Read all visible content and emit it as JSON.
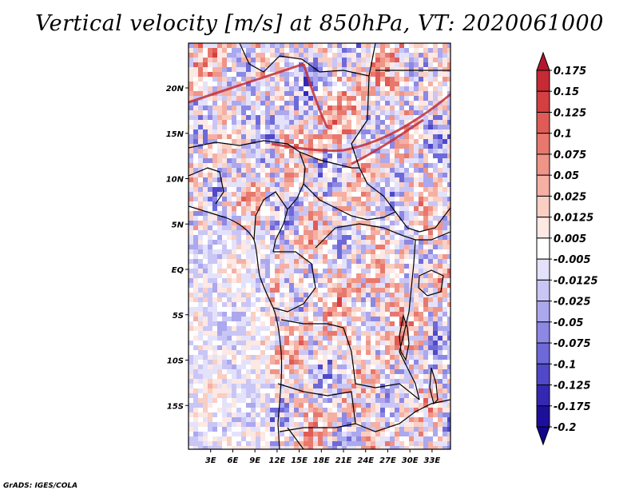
{
  "title": "Vertical velocity [m/s] at 850hPa, VT: 2020061000",
  "footer": "GrADS: IGES/COLA",
  "map": {
    "lat_labels": [
      {
        "label": "20N",
        "lat": 20
      },
      {
        "label": "15N",
        "lat": 15
      },
      {
        "label": "10N",
        "lat": 10
      },
      {
        "label": "5N",
        "lat": 5
      },
      {
        "label": "EQ",
        "lat": 0
      },
      {
        "label": "5S",
        "lat": -5
      },
      {
        "label": "10S",
        "lat": -10
      },
      {
        "label": "15S",
        "lat": -15
      }
    ],
    "lon_labels": [
      {
        "label": "3E",
        "lon": 3
      },
      {
        "label": "6E",
        "lon": 6
      },
      {
        "label": "9E",
        "lon": 9
      },
      {
        "label": "12E",
        "lon": 12
      },
      {
        "label": "15E",
        "lon": 15
      },
      {
        "label": "18E",
        "lon": 18
      },
      {
        "label": "21E",
        "lon": 21
      },
      {
        "label": "24E",
        "lon": 24
      },
      {
        "label": "27E",
        "lon": 27
      },
      {
        "label": "30E",
        "lon": 30
      },
      {
        "label": "33E",
        "lon": 33
      }
    ]
  },
  "colorbar": {
    "labels": [
      "0.175",
      "0.15",
      "0.125",
      "0.1",
      "0.075",
      "0.05",
      "0.025",
      "0.0125",
      "0.005",
      "-0.005",
      "-0.0125",
      "-0.025",
      "-0.05",
      "-0.075",
      "-0.1",
      "-0.125",
      "-0.175",
      "-0.2"
    ],
    "colors": [
      "#b2182b",
      "#c62a35",
      "#d43f42",
      "#e05b55",
      "#e8786d",
      "#ef9487",
      "#f5b0a3",
      "#f9cec3",
      "#fde8e3",
      "#ffffff",
      "#e4e2fb",
      "#c9c6f6",
      "#aba8ee",
      "#8c88e4",
      "#6e69d8",
      "#5048c8",
      "#3428b3",
      "#1d0f99",
      "#12068a"
    ]
  }
}
